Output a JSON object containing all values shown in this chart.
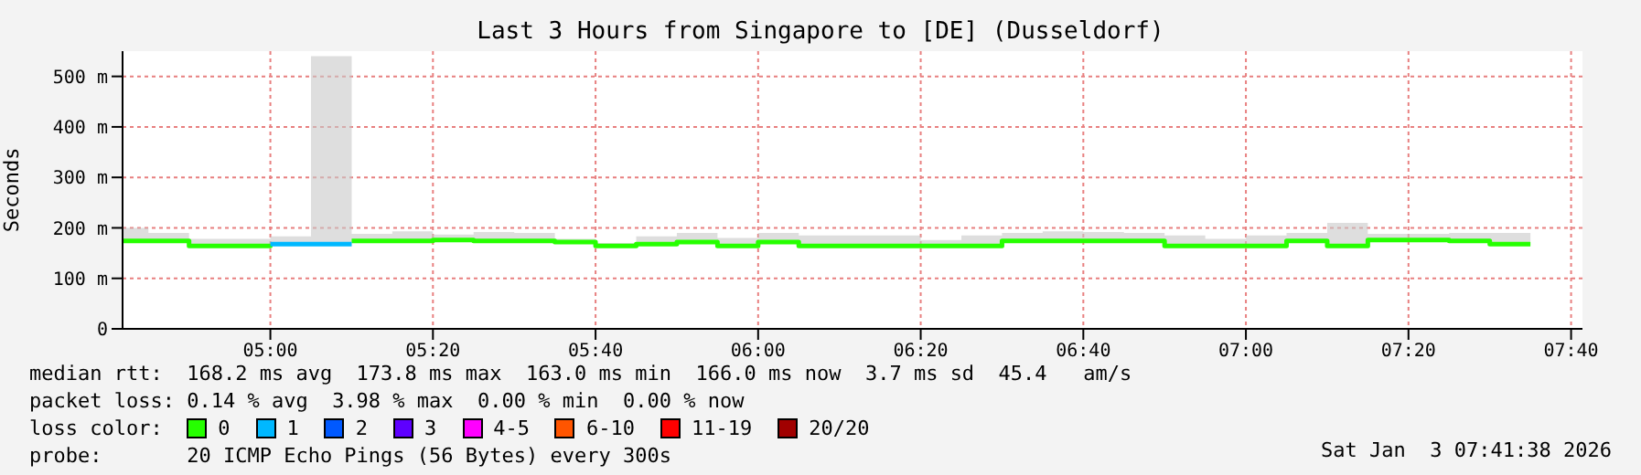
{
  "chart_data": {
    "type": "step",
    "title": "Last 3 Hours from Singapore to [DE] (Dusseldorf)",
    "ylabel": "Seconds",
    "legend_title": "loss color:",
    "legend": "bottom",
    "grid": true,
    "x": [
      4.697,
      4.75,
      4.8333,
      4.9167,
      5,
      5.0833,
      5.1667,
      5.25,
      5.3333,
      5.4167,
      5.5,
      5.5833,
      5.6667,
      5.75,
      5.8333,
      5.9167,
      6,
      6.0833,
      6.1667,
      6.25,
      6.3333,
      6.4167,
      6.5,
      6.5833,
      6.6667,
      6.75,
      6.8333,
      6.9167,
      7,
      7.0833,
      7.1667,
      7.25,
      7.3333,
      7.4167,
      7.5,
      7.5833
    ],
    "xlim": [
      4.697,
      7.69
    ],
    "xticks": [
      {
        "value": 5,
        "label": "05:00"
      },
      {
        "value": 5.3333,
        "label": "05:20"
      },
      {
        "value": 5.6667,
        "label": "05:40"
      },
      {
        "value": 6,
        "label": "06:00"
      },
      {
        "value": 6.3333,
        "label": "06:20"
      },
      {
        "value": 6.6667,
        "label": "06:40"
      },
      {
        "value": 7,
        "label": "07:00"
      },
      {
        "value": 7.3333,
        "label": "07:20"
      },
      {
        "value": 7.6667,
        "label": "07:40"
      }
    ],
    "ylim": [
      0,
      550
    ],
    "yticks": [
      0,
      {
        "value": 100,
        "label": "100 m"
      },
      {
        "value": 200,
        "label": "200 m"
      },
      {
        "value": 300,
        "label": "300 m"
      },
      {
        "value": 400,
        "label": "400 m"
      },
      {
        "value": 500,
        "label": "500 m"
      }
    ],
    "series": [
      {
        "name": "0",
        "color": "#26ff00",
        "values": [
          174,
          174,
          164,
          164,
          168,
          null,
          174,
          174,
          176,
          174,
          174,
          172,
          164,
          168,
          172,
          164,
          172,
          164,
          164,
          164,
          164,
          164,
          174,
          174,
          174,
          174,
          164,
          164,
          164,
          174,
          164,
          176,
          176,
          174,
          168,
          168
        ],
        "upper": [
          200,
          190,
          178,
          178,
          183,
          540,
          188,
          193,
          187,
          192,
          190,
          178,
          170,
          183,
          190,
          180,
          190,
          185,
          185,
          185,
          176,
          185,
          190,
          193,
          192,
          190,
          185,
          178,
          185,
          190,
          210,
          188,
          188,
          190,
          190,
          190
        ],
        "lower": [
          171,
          171,
          161,
          161,
          165,
          165,
          171,
          171,
          173,
          171,
          171,
          169,
          161,
          165,
          169,
          161,
          169,
          161,
          161,
          161,
          161,
          161,
          171,
          171,
          171,
          171,
          161,
          161,
          161,
          171,
          161,
          173,
          173,
          171,
          165,
          165
        ]
      },
      {
        "name": "1",
        "color": "#00b8ff",
        "x": [
          5,
          5.0833,
          5.1667
        ],
        "values": [
          168,
          168,
          168
        ]
      },
      {
        "name": "2",
        "color": "#0059ff",
        "values": [
          null,
          null,
          null,
          null,
          null,
          null,
          null,
          null,
          null,
          null,
          null,
          null,
          null,
          null,
          null,
          null,
          null,
          null,
          null,
          null,
          null,
          null,
          null,
          null,
          null,
          null,
          null,
          null,
          null,
          null,
          null,
          null,
          null,
          null,
          null,
          null
        ]
      },
      {
        "name": "3",
        "color": "#5e00ff",
        "values": [
          null,
          null,
          null,
          null,
          null,
          null,
          null,
          null,
          null,
          null,
          null,
          null,
          null,
          null,
          null,
          null,
          null,
          null,
          null,
          null,
          null,
          null,
          null,
          null,
          null,
          null,
          null,
          null,
          null,
          null,
          null,
          null,
          null,
          null,
          null,
          null
        ]
      },
      {
        "name": "4-5",
        "color": "#ff00ff",
        "values": [
          null,
          null,
          null,
          null,
          null,
          null,
          null,
          null,
          null,
          null,
          null,
          null,
          null,
          null,
          null,
          null,
          null,
          null,
          null,
          null,
          null,
          null,
          null,
          null,
          null,
          null,
          null,
          null,
          null,
          null,
          null,
          null,
          null,
          null,
          null,
          null
        ]
      },
      {
        "name": "6-10",
        "color": "#ff5500",
        "values": [
          null,
          null,
          null,
          null,
          null,
          null,
          null,
          null,
          null,
          null,
          null,
          null,
          null,
          null,
          null,
          null,
          null,
          null,
          null,
          null,
          null,
          null,
          null,
          null,
          null,
          null,
          null,
          null,
          null,
          null,
          null,
          null,
          null,
          null,
          null,
          null
        ]
      },
      {
        "name": "11-19",
        "color": "#ff0000",
        "values": [
          null,
          null,
          null,
          null,
          null,
          null,
          null,
          null,
          null,
          null,
          null,
          null,
          null,
          null,
          null,
          null,
          null,
          null,
          null,
          null,
          null,
          null,
          null,
          null,
          null,
          null,
          null,
          null,
          null,
          null,
          null,
          null,
          null,
          null,
          null,
          null
        ]
      },
      {
        "name": "20/20",
        "color": "#a10000",
        "values": [
          null,
          null,
          null,
          null,
          null,
          null,
          null,
          null,
          null,
          null,
          null,
          null,
          null,
          null,
          null,
          null,
          null,
          null,
          null,
          null,
          null,
          null,
          null,
          null,
          null,
          null,
          null,
          null,
          null,
          null,
          null,
          null,
          null,
          null,
          null,
          null
        ]
      }
    ],
    "annotations": [
      "median rtt:  168.2 ms avg  173.8 ms max  163.0 ms min  166.0 ms now  3.7 ms sd  45.4   am/s",
      "packet loss: 0.14 % avg  3.98 % max  0.00 % min  0.00 % now",
      "probe:       20 ICMP Echo Pings (56 Bytes) every 300s",
      "Sat Jan  3 07:41:38 2026"
    ]
  }
}
